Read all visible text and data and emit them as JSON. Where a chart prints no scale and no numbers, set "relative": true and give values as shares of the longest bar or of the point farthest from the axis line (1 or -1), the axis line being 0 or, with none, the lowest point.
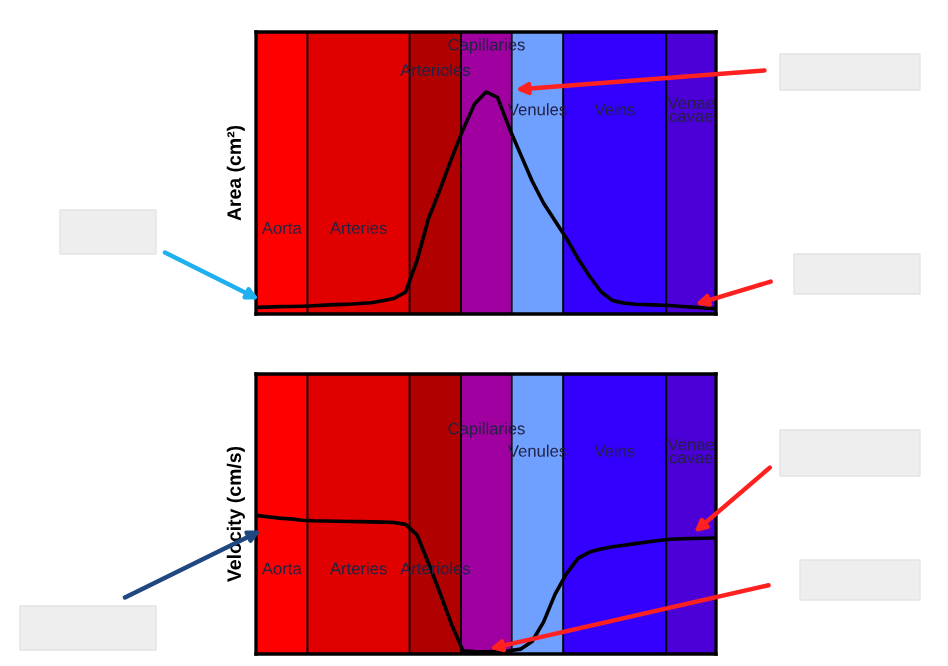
{
  "chart_data": [
    {
      "type": "line",
      "ylabel": "Area (cm²)",
      "relative": true,
      "color": "#000000",
      "categories": [
        null,
        null,
        null,
        null,
        null,
        null,
        null,
        null,
        null,
        null,
        null,
        null,
        null,
        null,
        null,
        null,
        null,
        null,
        null,
        null,
        null,
        null,
        null,
        null,
        null,
        null,
        null,
        null,
        null,
        null,
        null,
        null,
        null,
        null,
        null,
        null,
        null,
        null,
        null,
        null,
        null
      ],
      "values": [
        0.03,
        0.031,
        0.033,
        0.034,
        0.035,
        0.037,
        0.04,
        0.042,
        0.044,
        0.047,
        0.051,
        0.06,
        0.07,
        0.098,
        0.24,
        0.43,
        0.56,
        0.7,
        0.83,
        0.946,
        1,
        0.976,
        0.84,
        0.72,
        0.6,
        0.5,
        0.42,
        0.34,
        0.25,
        0.17,
        0.1,
        0.061,
        0.049,
        0.044,
        0.042,
        0.04,
        0.038,
        0.034,
        0.031,
        0.027,
        0.024
      ],
      "annotations": [
        "Aorta",
        "Arteries",
        "Arterioles",
        "Capillaries",
        "Venules",
        "Veins",
        "Venae\ncavae"
      ]
    },
    {
      "type": "line",
      "ylabel": "Velocity (cm/s)",
      "relative": true,
      "color": "#000000",
      "categories": [
        null,
        null,
        null,
        null,
        null,
        null,
        null,
        null,
        null,
        null,
        null,
        null,
        null,
        null,
        null,
        null,
        null,
        null,
        null,
        null,
        null,
        null,
        null,
        null,
        null,
        null,
        null,
        null,
        null,
        null,
        null,
        null,
        null,
        null,
        null,
        null,
        null,
        null,
        null,
        null,
        null
      ],
      "values": [
        1,
        0.99,
        0.98,
        0.975,
        0.965,
        0.961,
        0.959,
        0.958,
        0.956,
        0.955,
        0.953,
        0.951,
        0.949,
        0.935,
        0.86,
        0.655,
        0.44,
        0.215,
        0.023,
        0.017,
        0.015,
        0.019,
        0.023,
        0.035,
        0.09,
        0.23,
        0.43,
        0.58,
        0.69,
        0.735,
        0.757,
        0.774,
        0.785,
        0.796,
        0.808,
        0.819,
        0.828,
        0.831,
        0.833,
        0.835,
        0.837
      ],
      "annotations": [
        "Aorta",
        "Arteries",
        "Arterioles",
        "Capillaries",
        "Venules",
        "Veins",
        "Venae\ncavae"
      ]
    }
  ]
}
